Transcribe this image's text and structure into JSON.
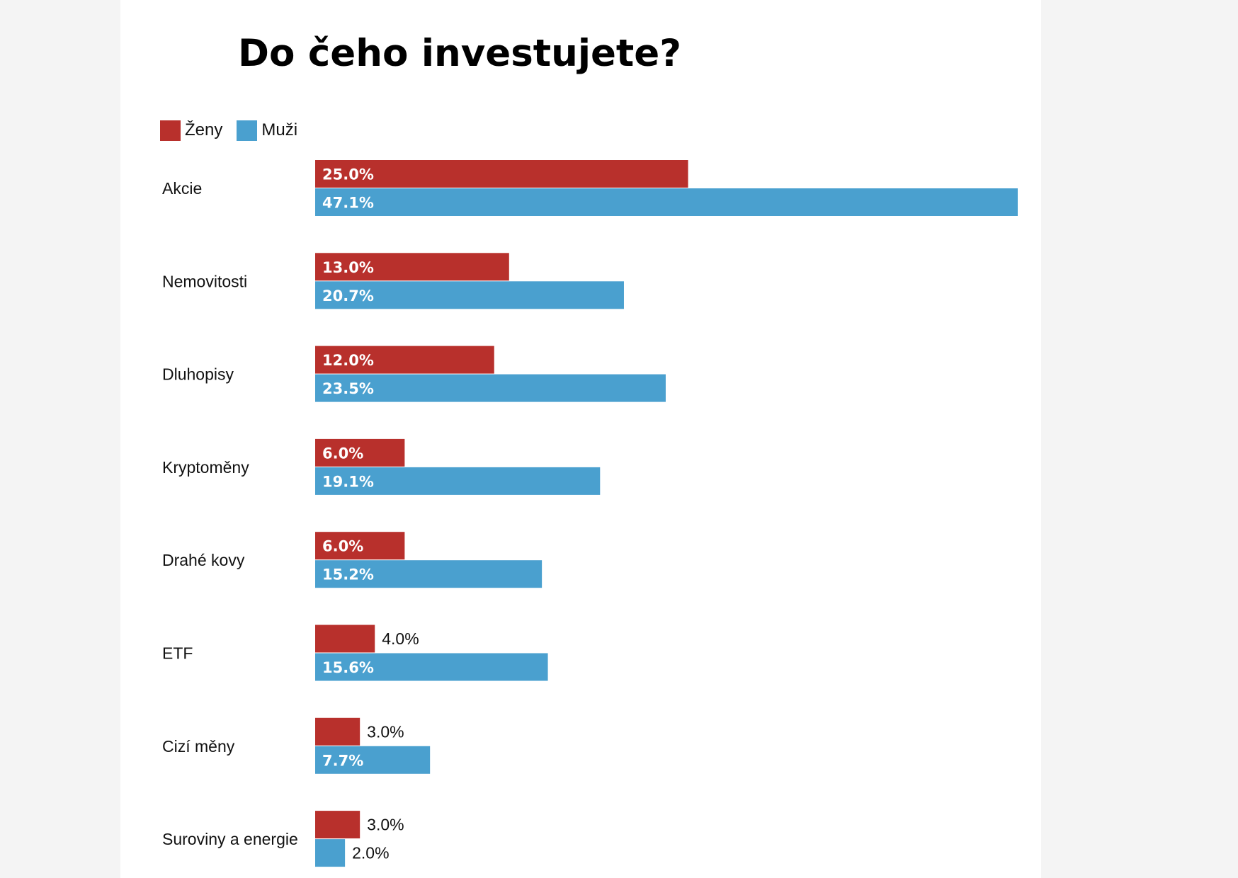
{
  "chart_data": {
    "type": "bar",
    "orientation": "horizontal",
    "title": "Do čeho investujete?",
    "categories": [
      "Akcie",
      "Nemovitosti",
      "Dluhopisy",
      "Kryptoměny",
      "Drahé kovy",
      "ETF",
      "Cizí měny",
      "Suroviny a energie"
    ],
    "series": [
      {
        "name": "Ženy",
        "color": "#b8302c",
        "values": [
          25.0,
          13.0,
          12.0,
          6.0,
          6.0,
          4.0,
          3.0,
          3.0
        ],
        "labels": [
          "25.0%",
          "13.0%",
          "12.0%",
          "6.0%",
          "6.0%",
          "4.0%",
          "3.0%",
          "3.0%"
        ]
      },
      {
        "name": "Muži",
        "color": "#4aa0cf",
        "values": [
          47.1,
          20.7,
          23.5,
          19.1,
          15.2,
          15.6,
          7.7,
          2.0
        ],
        "labels": [
          "47.1%",
          "20.7%",
          "23.5%",
          "19.1%",
          "15.2%",
          "15.6%",
          "7.7%",
          "2.0%"
        ]
      }
    ],
    "legend_position": "top-left",
    "grid": false,
    "xlim": [
      0,
      47.1
    ]
  }
}
